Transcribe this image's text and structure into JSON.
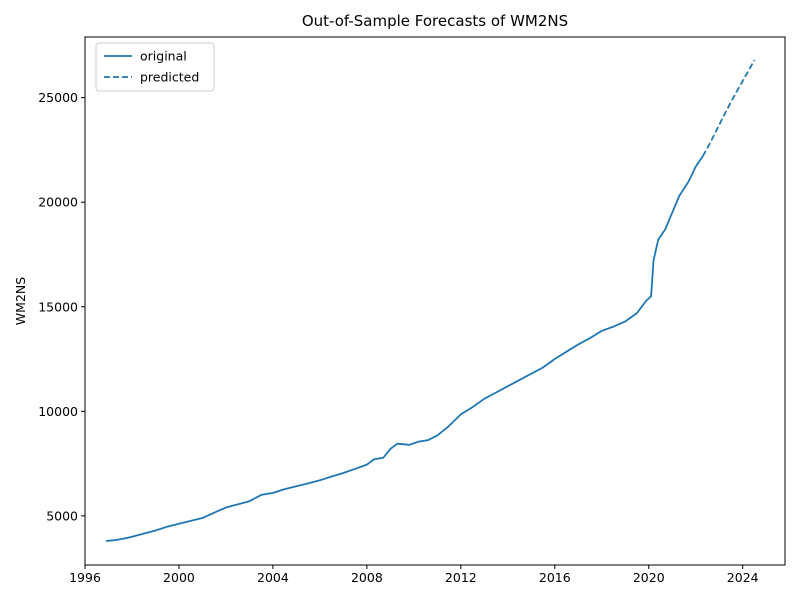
{
  "chart_data": {
    "type": "line",
    "title": "Out-of-Sample Forecasts of WM2NS",
    "xlabel": "",
    "ylabel": "WM2NS",
    "xlim": [
      1996.0,
      2025.8
    ],
    "ylim": [
      2650,
      27900
    ],
    "x_ticks": [
      1996,
      2000,
      2004,
      2008,
      2012,
      2016,
      2020,
      2024
    ],
    "y_ticks": [
      5000,
      10000,
      15000,
      20000,
      25000
    ],
    "grid": false,
    "legend_position": "top-left",
    "colors": {
      "series": "#1f77b4"
    },
    "series": [
      {
        "name": "original",
        "style": "solid",
        "points": [
          [
            1996.9,
            3800
          ],
          [
            1997.2,
            3830
          ],
          [
            1997.6,
            3900
          ],
          [
            1998.0,
            4000
          ],
          [
            1998.5,
            4150
          ],
          [
            1999.0,
            4300
          ],
          [
            1999.5,
            4480
          ],
          [
            2000.0,
            4620
          ],
          [
            2000.5,
            4760
          ],
          [
            2001.0,
            4900
          ],
          [
            2001.5,
            5150
          ],
          [
            2002.0,
            5400
          ],
          [
            2002.5,
            5550
          ],
          [
            2003.0,
            5700
          ],
          [
            2003.5,
            6000
          ],
          [
            2004.0,
            6100
          ],
          [
            2004.5,
            6280
          ],
          [
            2005.0,
            6420
          ],
          [
            2005.5,
            6550
          ],
          [
            2006.0,
            6700
          ],
          [
            2006.5,
            6880
          ],
          [
            2007.0,
            7050
          ],
          [
            2007.5,
            7250
          ],
          [
            2008.0,
            7450
          ],
          [
            2008.3,
            7700
          ],
          [
            2008.7,
            7780
          ],
          [
            2009.0,
            8200
          ],
          [
            2009.3,
            8450
          ],
          [
            2009.8,
            8400
          ],
          [
            2010.2,
            8550
          ],
          [
            2010.6,
            8620
          ],
          [
            2011.0,
            8850
          ],
          [
            2011.5,
            9300
          ],
          [
            2012.0,
            9850
          ],
          [
            2012.5,
            10200
          ],
          [
            2013.0,
            10600
          ],
          [
            2013.5,
            10900
          ],
          [
            2014.0,
            11200
          ],
          [
            2014.5,
            11500
          ],
          [
            2015.0,
            11800
          ],
          [
            2015.5,
            12100
          ],
          [
            2016.0,
            12500
          ],
          [
            2016.5,
            12850
          ],
          [
            2017.0,
            13200
          ],
          [
            2017.5,
            13500
          ],
          [
            2018.0,
            13850
          ],
          [
            2018.5,
            14050
          ],
          [
            2019.0,
            14300
          ],
          [
            2019.5,
            14700
          ],
          [
            2019.9,
            15300
          ],
          [
            2020.1,
            15500
          ],
          [
            2020.2,
            17200
          ],
          [
            2020.4,
            18200
          ],
          [
            2020.7,
            18700
          ],
          [
            2021.0,
            19500
          ],
          [
            2021.3,
            20300
          ],
          [
            2021.7,
            21000
          ],
          [
            2022.0,
            21700
          ],
          [
            2022.3,
            22200
          ]
        ]
      },
      {
        "name": "predicted",
        "style": "dashed",
        "points": [
          [
            2022.3,
            22200
          ],
          [
            2022.6,
            22800
          ],
          [
            2023.0,
            23700
          ],
          [
            2023.5,
            24800
          ],
          [
            2024.0,
            25800
          ],
          [
            2024.5,
            26800
          ]
        ]
      }
    ]
  }
}
